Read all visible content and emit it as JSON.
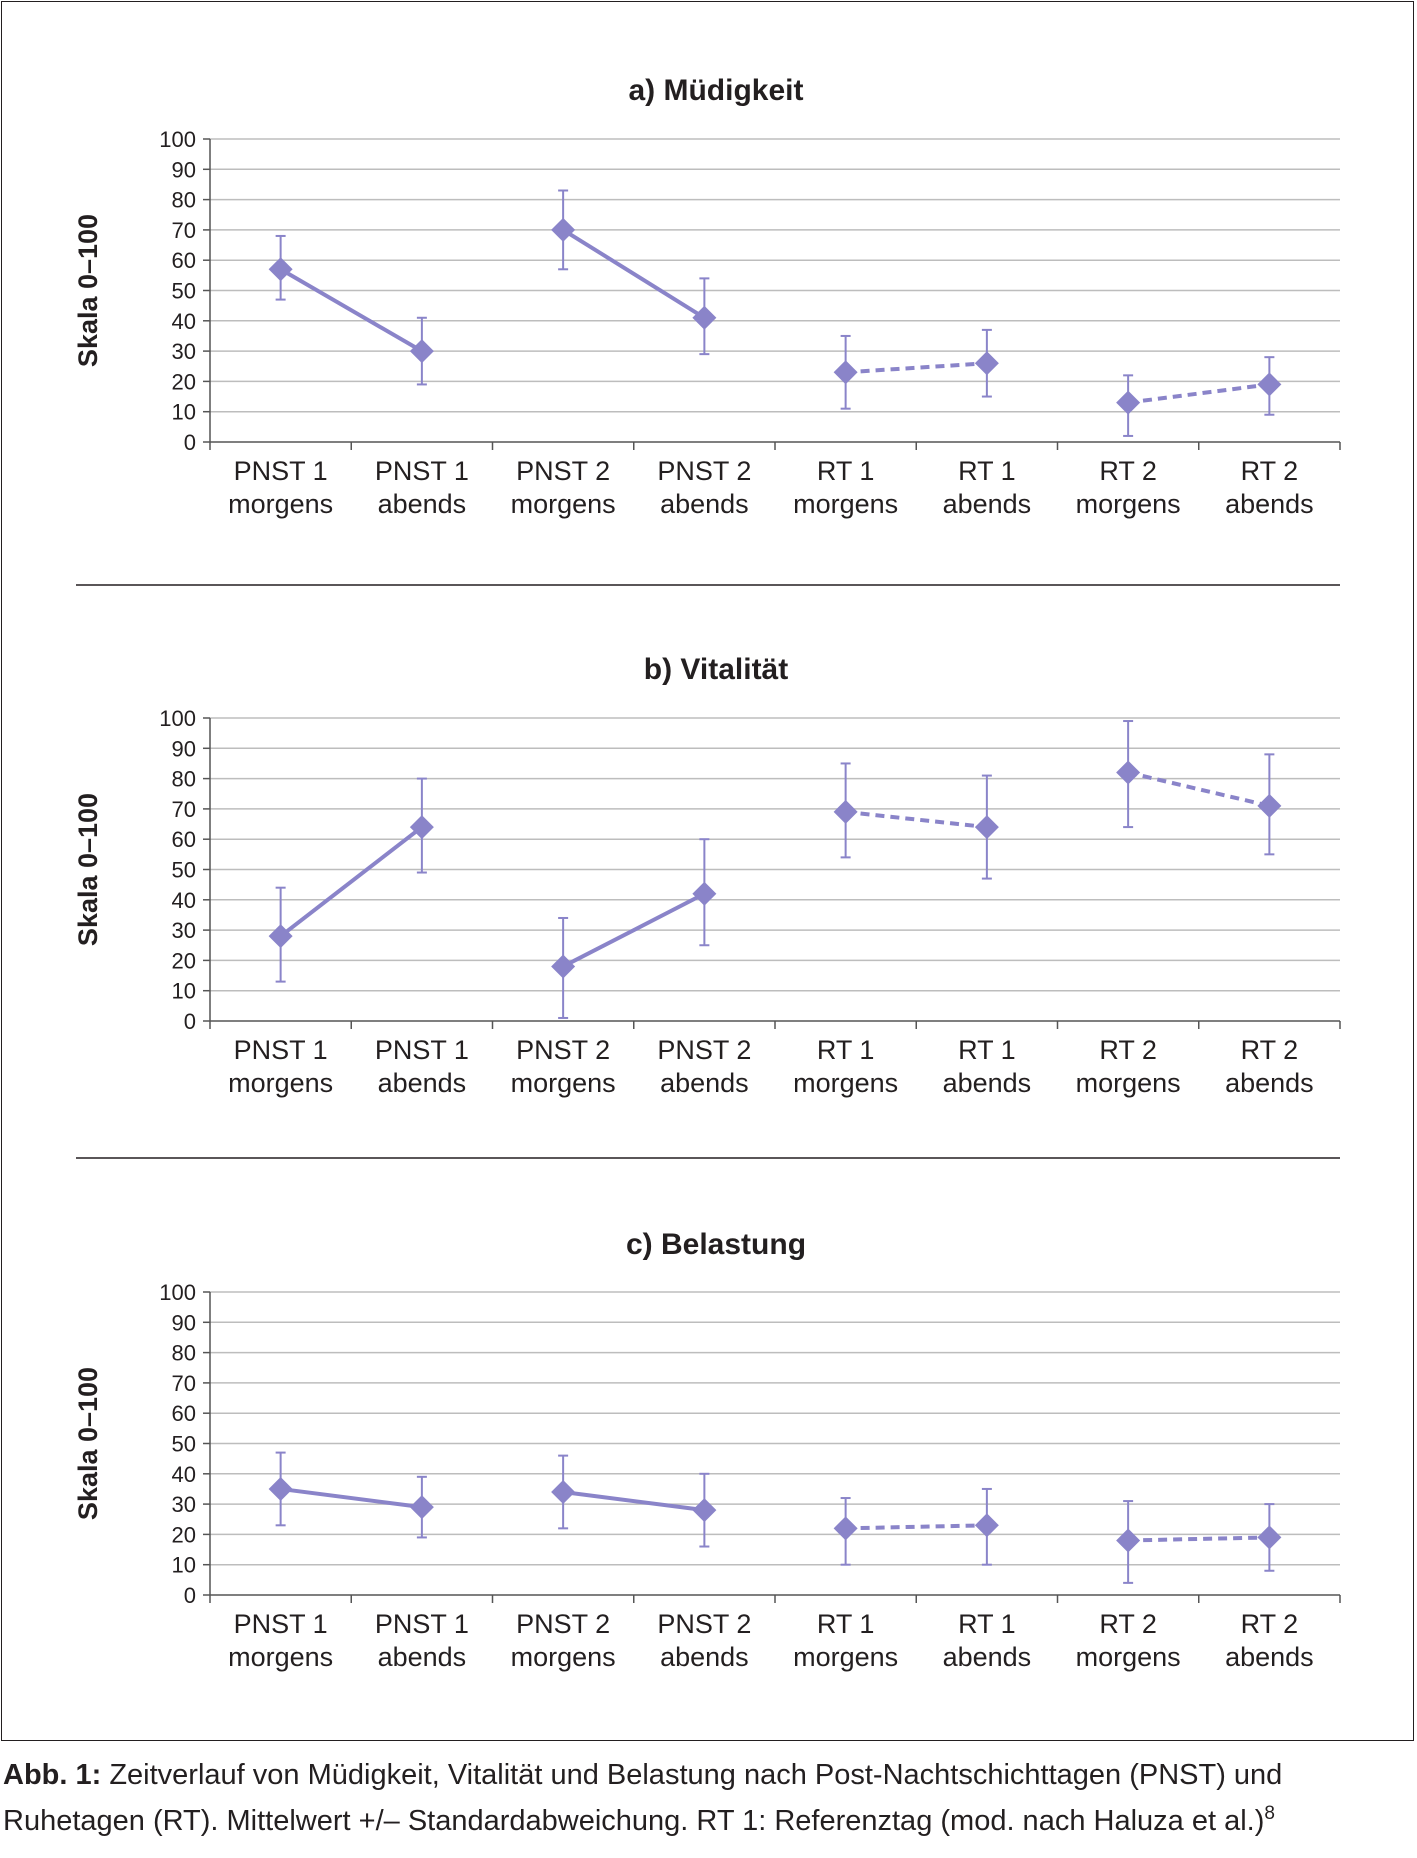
{
  "chart_data": [
    {
      "type": "line",
      "title": "a) Müdigkeit",
      "ylabel": "Skala 0–100",
      "xlabel": "",
      "ylim": [
        0,
        100
      ],
      "yticks": [
        0,
        10,
        20,
        30,
        40,
        50,
        60,
        70,
        80,
        90,
        100
      ],
      "categories": [
        [
          "PNST 1",
          "morgens"
        ],
        [
          "PNST 1",
          "abends"
        ],
        [
          "PNST 2",
          "morgens"
        ],
        [
          "PNST 2",
          "abends"
        ],
        [
          "RT 1",
          "morgens"
        ],
        [
          "RT 1",
          "abends"
        ],
        [
          "RT 2",
          "morgens"
        ],
        [
          "RT 2",
          "abends"
        ]
      ],
      "values": [
        57,
        30,
        70,
        41,
        23,
        26,
        13,
        19
      ],
      "error_low": [
        47,
        19,
        57,
        29,
        11,
        15,
        2,
        9
      ],
      "error_high": [
        68,
        41,
        83,
        54,
        35,
        37,
        22,
        28
      ],
      "segments": [
        {
          "from": 0,
          "to": 1,
          "style": "solid"
        },
        {
          "from": 2,
          "to": 3,
          "style": "solid"
        },
        {
          "from": 4,
          "to": 5,
          "style": "dashed"
        },
        {
          "from": 6,
          "to": 7,
          "style": "dashed"
        }
      ],
      "color": "#8a84c9"
    },
    {
      "type": "line",
      "title": "b) Vitalität",
      "ylabel": "Skala 0–100",
      "xlabel": "",
      "ylim": [
        0,
        100
      ],
      "yticks": [
        0,
        10,
        20,
        30,
        40,
        50,
        60,
        70,
        80,
        90,
        100
      ],
      "categories": [
        [
          "PNST 1",
          "morgens"
        ],
        [
          "PNST 1",
          "abends"
        ],
        [
          "PNST 2",
          "morgens"
        ],
        [
          "PNST 2",
          "abends"
        ],
        [
          "RT 1",
          "morgens"
        ],
        [
          "RT 1",
          "abends"
        ],
        [
          "RT 2",
          "morgens"
        ],
        [
          "RT 2",
          "abends"
        ]
      ],
      "values": [
        28,
        64,
        18,
        42,
        69,
        64,
        82,
        71
      ],
      "error_low": [
        13,
        49,
        1,
        25,
        54,
        47,
        64,
        55
      ],
      "error_high": [
        44,
        80,
        34,
        60,
        85,
        81,
        99,
        88
      ],
      "segments": [
        {
          "from": 0,
          "to": 1,
          "style": "solid"
        },
        {
          "from": 2,
          "to": 3,
          "style": "solid"
        },
        {
          "from": 4,
          "to": 5,
          "style": "dashed"
        },
        {
          "from": 6,
          "to": 7,
          "style": "dashed"
        }
      ],
      "color": "#8a84c9"
    },
    {
      "type": "line",
      "title": "c) Belastung",
      "ylabel": "Skala 0–100",
      "xlabel": "",
      "ylim": [
        0,
        100
      ],
      "yticks": [
        0,
        10,
        20,
        30,
        40,
        50,
        60,
        70,
        80,
        90,
        100
      ],
      "categories": [
        [
          "PNST 1",
          "morgens"
        ],
        [
          "PNST 1",
          "abends"
        ],
        [
          "PNST 2",
          "morgens"
        ],
        [
          "PNST 2",
          "abends"
        ],
        [
          "RT 1",
          "morgens"
        ],
        [
          "RT 1",
          "abends"
        ],
        [
          "RT 2",
          "morgens"
        ],
        [
          "RT 2",
          "abends"
        ]
      ],
      "values": [
        35,
        29,
        34,
        28,
        22,
        23,
        18,
        19
      ],
      "error_low": [
        23,
        19,
        22,
        16,
        10,
        10,
        4,
        8
      ],
      "error_high": [
        47,
        39,
        46,
        40,
        32,
        35,
        31,
        30
      ],
      "segments": [
        {
          "from": 0,
          "to": 1,
          "style": "solid"
        },
        {
          "from": 2,
          "to": 3,
          "style": "solid"
        },
        {
          "from": 4,
          "to": 5,
          "style": "dashed"
        },
        {
          "from": 6,
          "to": 7,
          "style": "dashed"
        }
      ],
      "color": "#8a84c9"
    }
  ],
  "caption": {
    "label": "Abb. 1:",
    "text": " Zeitverlauf von Müdigkeit, Vitalität und Belastung nach Post-Nachtschichttagen (PNST) und Ruhetagen (RT). Mittelwert +/– Standardabweichung. RT 1: Referenztag (mod. nach Haluza et al.)",
    "reference": "8"
  }
}
